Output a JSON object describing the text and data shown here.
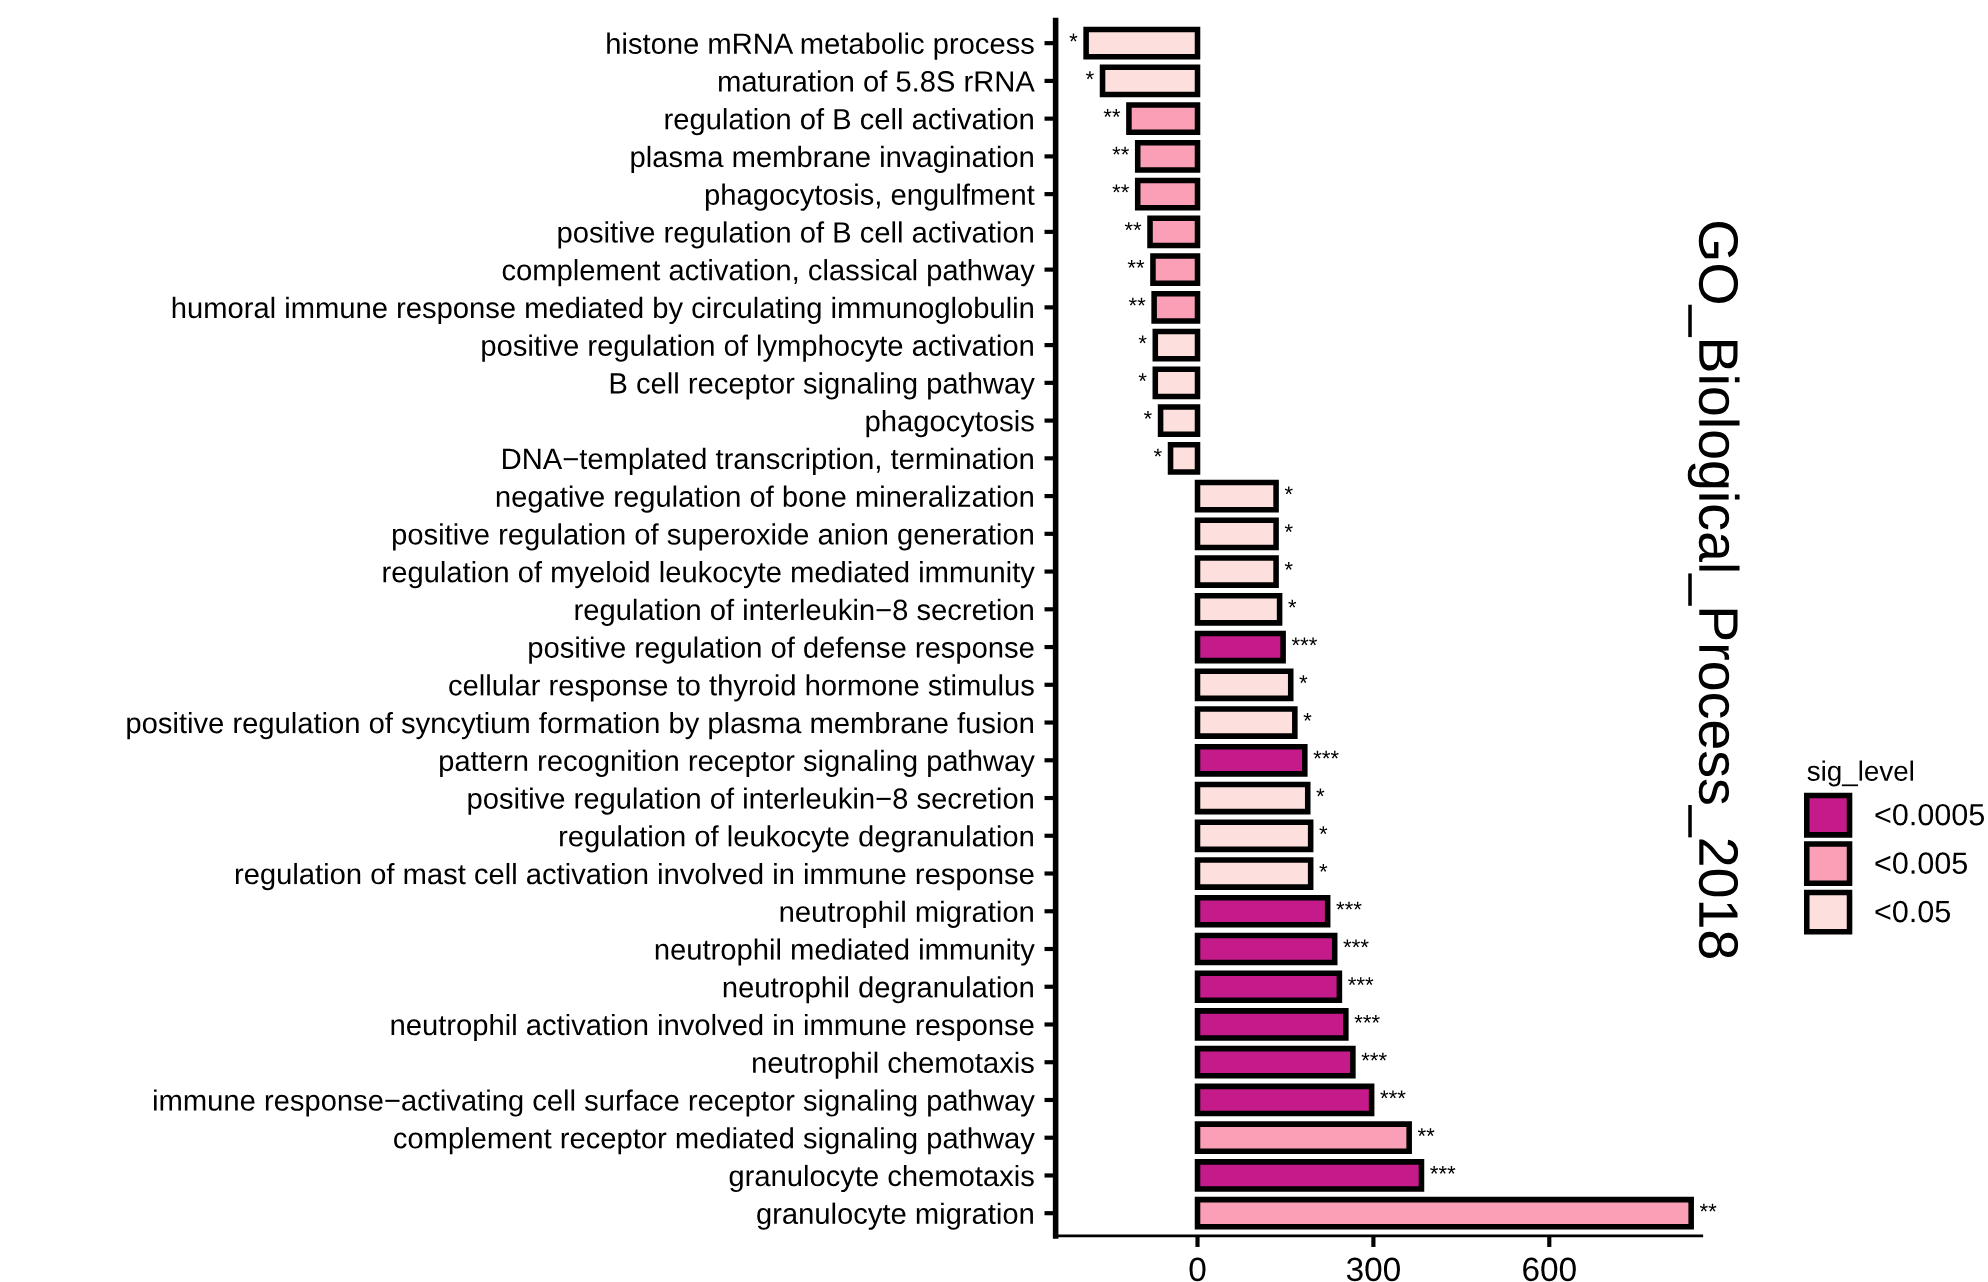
{
  "chart_data": {
    "type": "bar",
    "orientation": "horizontal",
    "title": "GO_Biological_Process_2018",
    "legend_title": "sig_level",
    "legend": "right",
    "categories": [
      "histone mRNA metabolic process",
      "maturation of 5.8S rRNA",
      "regulation of B cell activation",
      "plasma membrane invagination",
      "phagocytosis, engulfment",
      "positive regulation of B cell activation",
      "complement activation, classical pathway",
      "humoral immune response mediated by circulating immunoglobulin",
      "positive regulation of lymphocyte activation",
      "B cell receptor signaling pathway",
      "phagocytosis",
      "DNA−templated transcription, termination",
      "negative regulation of bone mineralization",
      "positive regulation of superoxide anion generation",
      "regulation of myeloid leukocyte mediated immunity",
      "regulation of interleukin−8 secretion",
      "positive regulation of defense response",
      "cellular response to thyroid hormone stimulus",
      "positive regulation of syncytium formation by plasma membrane fusion",
      "pattern recognition receptor signaling pathway",
      "positive regulation of interleukin−8 secretion",
      "regulation of leukocyte degranulation",
      "regulation of mast cell activation involved in immune response",
      "neutrophil migration",
      "neutrophil mediated immunity",
      "neutrophil degranulation",
      "neutrophil activation involved in immune response",
      "neutrophil chemotaxis",
      "immune response−activating cell surface receptor signaling pathway",
      "complement receptor mediated signaling pathway",
      "granulocyte chemotaxis",
      "granulocyte migration"
    ],
    "series": [
      {
        "name": "<0.0005",
        "color": "#c51b8a",
        "values": [
          null,
          null,
          null,
          null,
          null,
          null,
          null,
          null,
          null,
          null,
          null,
          null,
          null,
          null,
          null,
          null,
          146,
          null,
          null,
          183,
          null,
          null,
          null,
          222,
          234,
          242,
          253,
          265,
          297,
          null,
          382,
          null
        ],
        "value_labels": [
          null,
          null,
          null,
          null,
          null,
          null,
          null,
          null,
          null,
          null,
          null,
          null,
          null,
          null,
          null,
          null,
          "***",
          null,
          null,
          "***",
          null,
          null,
          null,
          "***",
          "***",
          "***",
          "***",
          "***",
          "***",
          null,
          "***",
          null
        ]
      },
      {
        "name": "<0.005",
        "color": "#fa9fb5",
        "values": [
          null,
          null,
          -117,
          -102,
          -102,
          -81,
          -76,
          -74,
          null,
          null,
          null,
          null,
          null,
          null,
          null,
          null,
          null,
          null,
          null,
          null,
          null,
          null,
          null,
          null,
          null,
          null,
          null,
          null,
          null,
          361,
          null,
          842
        ],
        "value_labels": [
          null,
          null,
          "**",
          "**",
          "**",
          "**",
          "**",
          "**",
          null,
          null,
          null,
          null,
          null,
          null,
          null,
          null,
          null,
          null,
          null,
          null,
          null,
          null,
          null,
          null,
          null,
          null,
          null,
          null,
          null,
          "**",
          null,
          "**"
        ]
      },
      {
        "name": "<0.05",
        "color": "#fde0dd",
        "values": [
          -190,
          -162,
          null,
          null,
          null,
          null,
          null,
          null,
          -72,
          -72,
          -63,
          -46,
          134,
          134,
          134,
          140,
          null,
          159,
          166,
          null,
          188,
          193,
          193,
          null,
          null,
          null,
          null,
          null,
          null,
          null,
          null,
          null
        ],
        "value_labels": [
          "*",
          "*",
          null,
          null,
          null,
          null,
          null,
          null,
          "*",
          "*",
          "*",
          "*",
          "*",
          "*",
          "*",
          "*",
          null,
          "*",
          "*",
          null,
          "*",
          "*",
          "*",
          null,
          null,
          null,
          null,
          null,
          null,
          null,
          null,
          null
        ]
      }
    ],
    "xlim": [
      -242,
      860
    ],
    "xticks": [
      0,
      300,
      600
    ],
    "grid": false
  }
}
